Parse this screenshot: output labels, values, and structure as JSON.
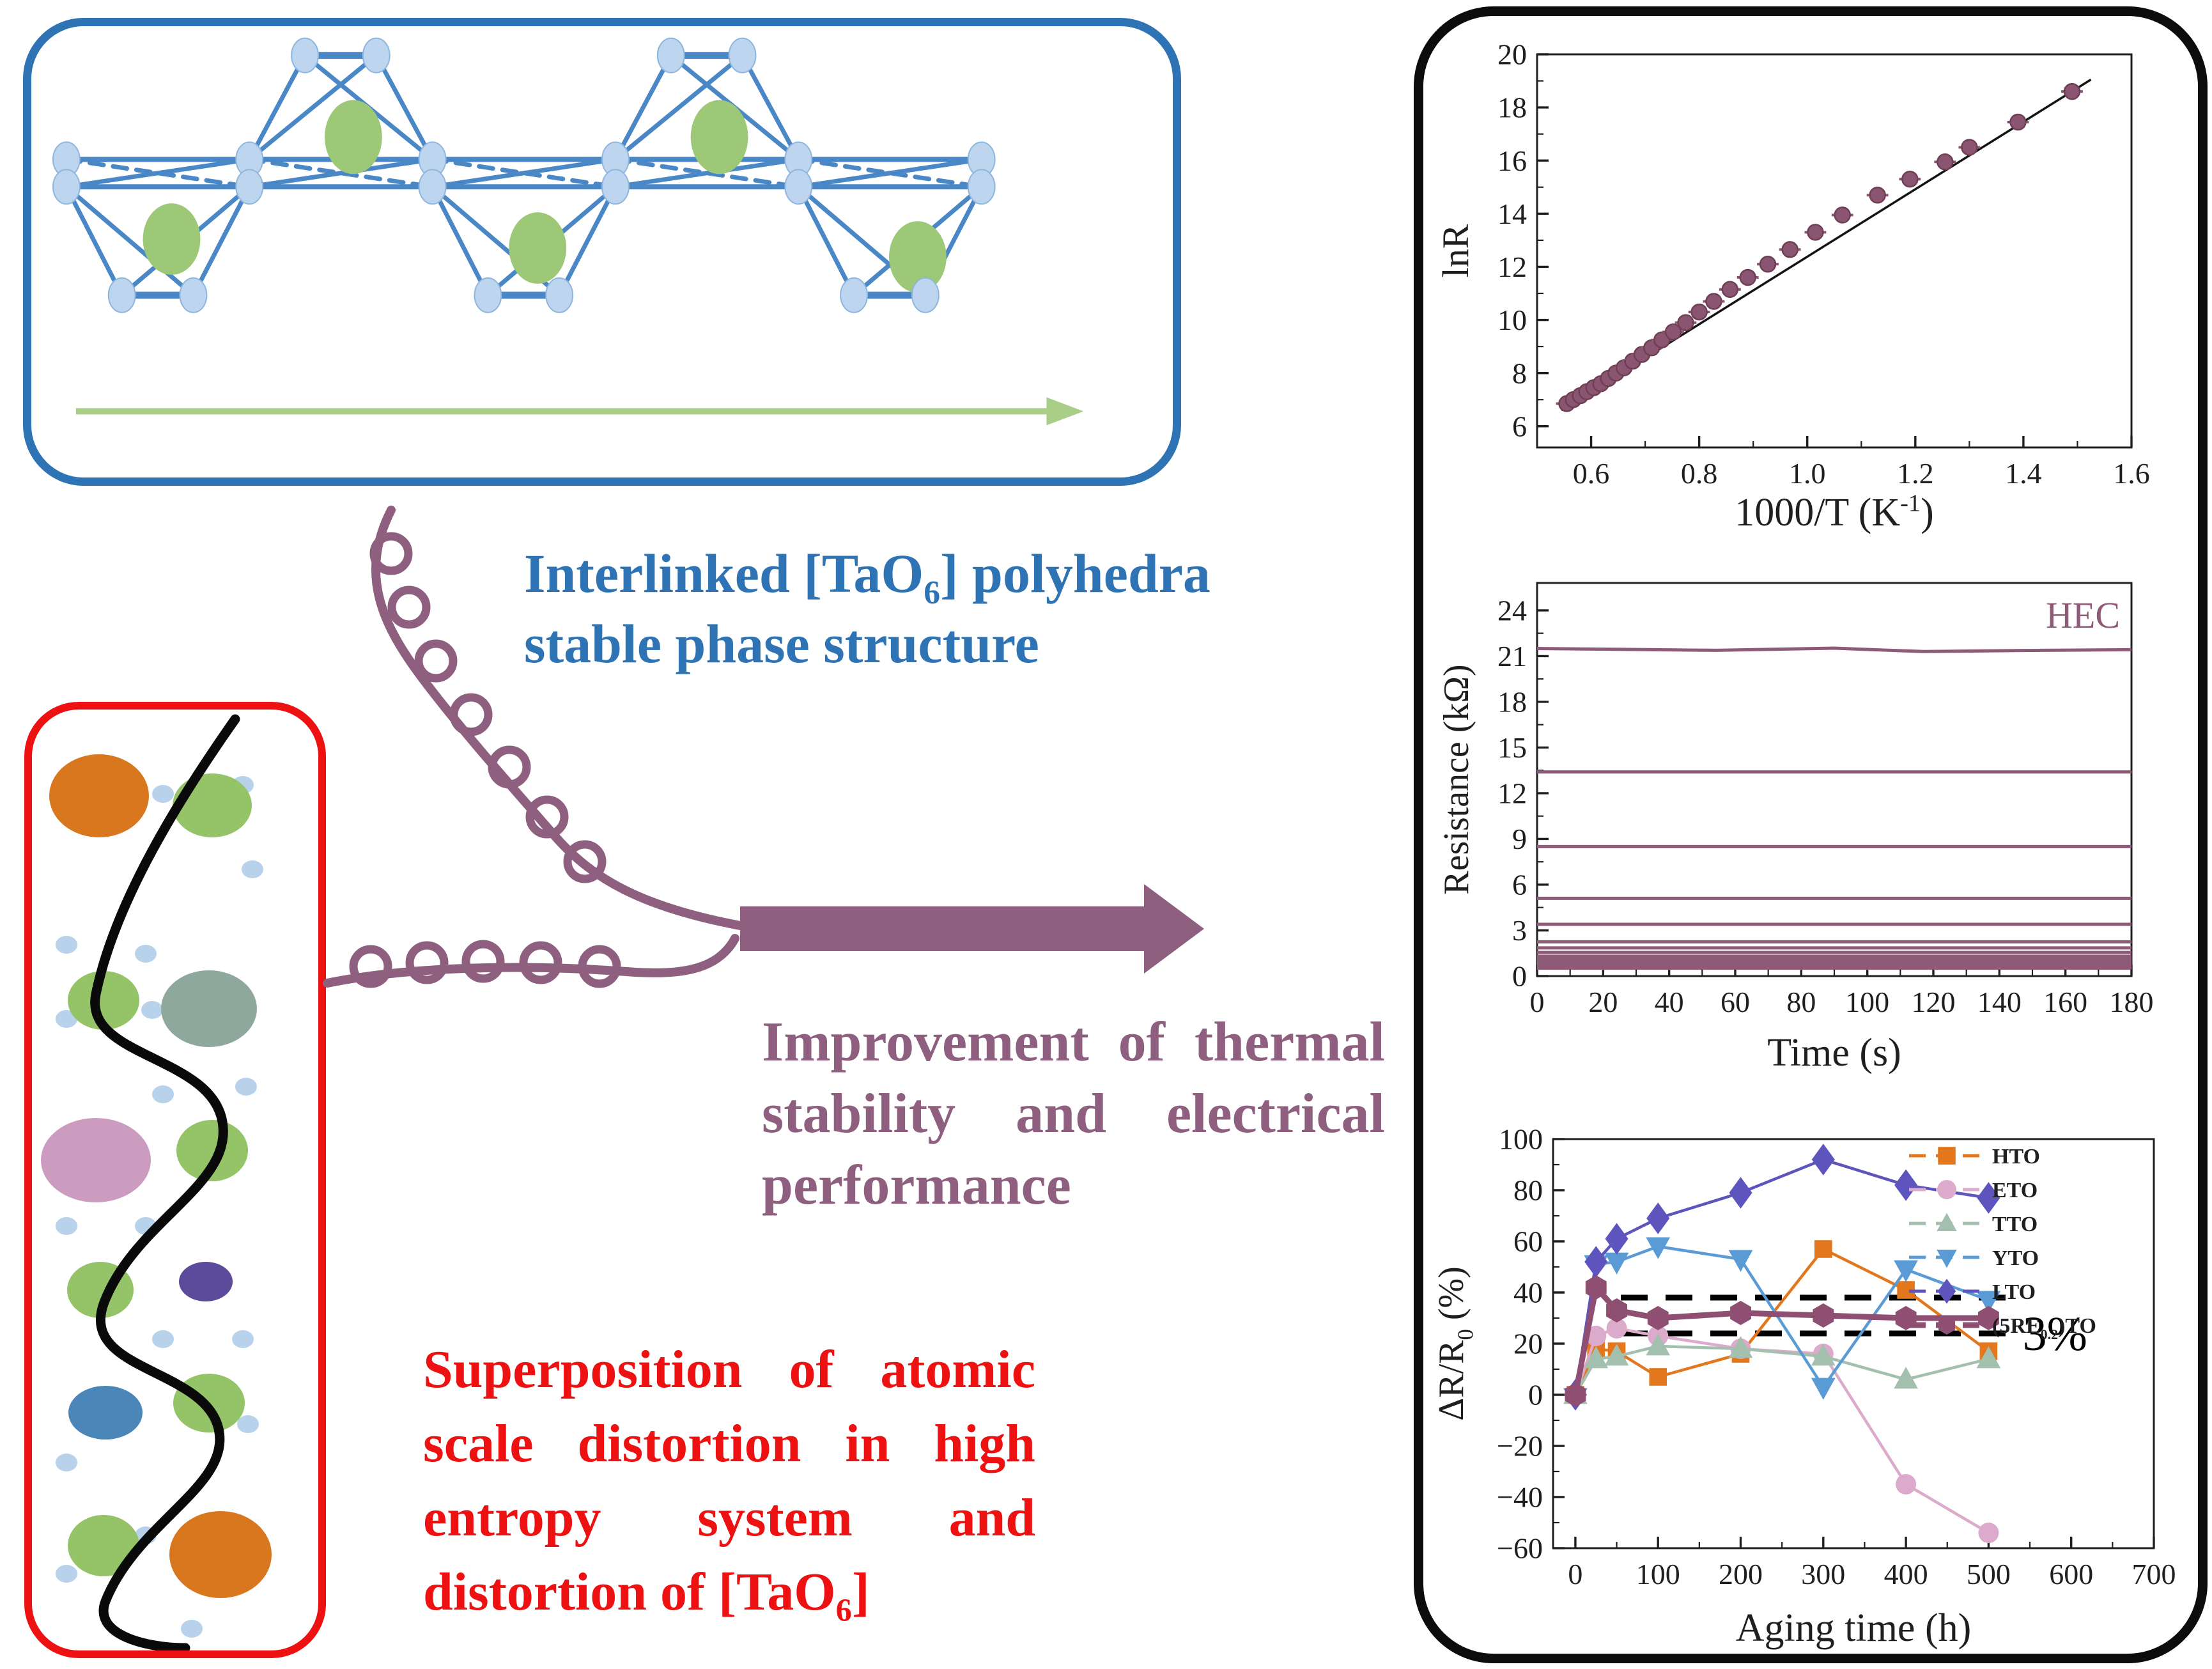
{
  "colors": {
    "blue-accent": "#2e74b5",
    "red-accent": "#ee1111",
    "plum": "#8e5f7e",
    "plum-dark": "#8d5a78",
    "node-blue": "#bdd5ee",
    "node-stroke": "#8fb6de",
    "bond-blue": "#4a87c6",
    "green-ellipse": "#9cc878",
    "green-arrow": "#a9ce87",
    "atom-orange": "#d9771e",
    "atom-green": "#94c368",
    "atom-sage": "#8fa89e",
    "atom-pink": "#cc9bc0",
    "atom-purple": "#5c4b9b",
    "atom-blue": "#4a86b8",
    "atom-dot": "#b7d2ea",
    "wave-black": "#0a0a0a",
    "axis-ink": "#1f1f1f"
  },
  "headings": {
    "blue": {
      "lines": [
        [
          {
            "t": "Interlinked [TaO"
          },
          {
            "t": "6",
            "sub": true
          },
          {
            "t": "] polyhedra"
          }
        ],
        [
          {
            "t": "stable phase structure"
          }
        ]
      ],
      "justify": [
        false,
        false
      ]
    },
    "plum": {
      "lines": [
        [
          {
            "t": "Improvement of thermal"
          }
        ],
        [
          {
            "t": "stability and electrical"
          }
        ],
        [
          {
            "t": "performance"
          }
        ]
      ],
      "justify": [
        true,
        true,
        false
      ]
    },
    "red": {
      "lines": [
        [
          {
            "t": "Superposition of atomic"
          }
        ],
        [
          {
            "t": "scale distortion in high"
          }
        ],
        [
          {
            "t": "entropy system and"
          }
        ],
        [
          {
            "t": "distortion of [TaO"
          },
          {
            "t": "6",
            "sub": true
          },
          {
            "t": "]"
          }
        ]
      ],
      "justify": [
        true,
        true,
        true,
        false
      ]
    }
  },
  "chart_data": [
    {
      "type": "scatter",
      "title": "",
      "ylabel": "lnR",
      "xlabel_segments": [
        {
          "t": "1000/T (K"
        },
        {
          "t": "-1",
          "sup": true
        },
        {
          "t": ")"
        }
      ],
      "xlim": [
        0.5,
        1.6
      ],
      "ylim": [
        5.2,
        20
      ],
      "grid": false,
      "legend_position": "none",
      "xticks": {
        "values": [
          0.6,
          0.8,
          1.0,
          1.2,
          1.4,
          1.6
        ],
        "labels": [
          "0.6",
          "0.8",
          "1.0",
          "1.2",
          "1.4",
          "1.6"
        ],
        "minor": [
          0.7,
          0.9,
          1.1,
          1.3,
          1.5
        ]
      },
      "yticks": {
        "values": [
          6,
          8,
          10,
          12,
          14,
          16,
          18,
          20
        ],
        "labels": [
          "6",
          "8",
          "10",
          "12",
          "14",
          "16",
          "18",
          "20"
        ],
        "minor": [
          7,
          9,
          11,
          13,
          15,
          17,
          19
        ]
      },
      "point_color": "#8a5570",
      "point_edge": "#6e3f55",
      "fit_line": {
        "x": [
          0.545,
          1.525
        ],
        "y": [
          6.6,
          19.05
        ],
        "color": "#141414"
      },
      "xerr": 0.02,
      "points": [
        [
          0.555,
          6.85
        ],
        [
          0.567,
          7.0
        ],
        [
          0.58,
          7.15
        ],
        [
          0.592,
          7.3
        ],
        [
          0.605,
          7.45
        ],
        [
          0.618,
          7.6
        ],
        [
          0.632,
          7.8
        ],
        [
          0.646,
          8.0
        ],
        [
          0.661,
          8.2
        ],
        [
          0.677,
          8.45
        ],
        [
          0.694,
          8.7
        ],
        [
          0.712,
          8.95
        ],
        [
          0.731,
          9.25
        ],
        [
          0.752,
          9.55
        ],
        [
          0.775,
          9.9
        ],
        [
          0.8,
          10.3
        ],
        [
          0.827,
          10.7
        ],
        [
          0.857,
          11.15
        ],
        [
          0.89,
          11.6
        ],
        [
          0.927,
          12.1
        ],
        [
          0.968,
          12.65
        ],
        [
          1.015,
          13.3
        ],
        [
          1.065,
          13.95
        ],
        [
          1.13,
          14.7
        ],
        [
          1.19,
          15.3
        ],
        [
          1.255,
          15.95
        ],
        [
          1.3,
          16.5
        ],
        [
          1.39,
          17.45
        ],
        [
          1.49,
          18.6
        ]
      ]
    },
    {
      "type": "line",
      "title": "",
      "ylabel": "Resistance (kΩ)",
      "xlabel": "Time (s)",
      "annotation": "HEC",
      "xlim": [
        0,
        180
      ],
      "ylim": [
        0,
        25.8
      ],
      "grid": false,
      "legend_position": "none",
      "xticks": {
        "values": [
          0,
          20,
          40,
          60,
          80,
          100,
          120,
          140,
          160,
          180
        ],
        "labels": [
          "0",
          "20",
          "40",
          "60",
          "80",
          "100",
          "120",
          "140",
          "160",
          "180"
        ],
        "minor": [
          10,
          30,
          50,
          70,
          90,
          110,
          130,
          150,
          170
        ]
      },
      "yticks": {
        "values": [
          0,
          3,
          6,
          9,
          12,
          15,
          18,
          21,
          24
        ],
        "labels": [
          "0",
          "3",
          "6",
          "9",
          "12",
          "15",
          "18",
          "21",
          "24"
        ],
        "minor": [
          1.5,
          4.5,
          7.5,
          10.5,
          13.5,
          16.5,
          19.5,
          22.5
        ]
      },
      "line_color": "#8d5a78",
      "lines": [
        21.5,
        13.4,
        8.5,
        5.1,
        3.4,
        2.25,
        1.85,
        1.55,
        1.3,
        1.12,
        0.95,
        0.8,
        0.65,
        0.52
      ]
    },
    {
      "type": "line",
      "title": "",
      "ylabel_segments": [
        {
          "t": "ΔR/R"
        },
        {
          "t": "0",
          "sub": true
        },
        {
          "t": " (%)"
        }
      ],
      "xlabel": "Aging time (h)",
      "annotation": "3%",
      "xlim": [
        -27,
        700
      ],
      "ylim": [
        -60,
        100
      ],
      "grid": false,
      "legend_position": "top-right",
      "xticks": {
        "values": [
          0,
          100,
          200,
          300,
          400,
          500,
          600,
          700
        ],
        "labels": [
          "0",
          "100",
          "200",
          "300",
          "400",
          "500",
          "600",
          "700"
        ],
        "minor": [
          50,
          150,
          250,
          350,
          450,
          550,
          650
        ]
      },
      "yticks": {
        "values": [
          -60,
          -40,
          -20,
          0,
          20,
          40,
          60,
          80,
          100
        ],
        "labels": [
          "−60",
          "−40",
          "−20",
          "0",
          "20",
          "40",
          "60",
          "80",
          "100"
        ],
        "minor": [
          -50,
          -30,
          -10,
          10,
          30,
          50,
          70,
          90
        ]
      },
      "x": [
        0,
        25,
        50,
        100,
        200,
        300,
        400,
        500
      ],
      "series": [
        {
          "name_segments": [
            {
              "t": "HTO"
            }
          ],
          "marker": "square",
          "color": "#e2771e",
          "values": [
            0,
            18,
            17,
            7,
            16,
            57,
            41,
            17
          ]
        },
        {
          "name_segments": [
            {
              "t": "ETO"
            }
          ],
          "marker": "circle",
          "color": "#dcaacb",
          "values": [
            0,
            23,
            26,
            23,
            18,
            16,
            -35,
            -54
          ]
        },
        {
          "name_segments": [
            {
              "t": "TTO"
            }
          ],
          "marker": "triangle-up",
          "color": "#a3c0ae",
          "values": [
            0,
            14,
            15,
            19,
            18,
            15,
            6,
            14
          ]
        },
        {
          "name_segments": [
            {
              "t": "YTO"
            }
          ],
          "marker": "triangle-down",
          "color": "#5b9bd5",
          "values": [
            -1,
            51,
            52,
            58,
            53,
            3,
            49,
            37
          ]
        },
        {
          "name_segments": [
            {
              "t": "LTO"
            }
          ],
          "marker": "diamond",
          "color": "#5e54bd",
          "values": [
            0,
            52,
            61,
            69,
            79,
            92,
            82,
            77
          ]
        },
        {
          "name_segments": [
            {
              "t": "(5RE"
            },
            {
              "t": "0.2",
              "sub": true
            },
            {
              "t": ")TO"
            }
          ],
          "marker": "hexagon",
          "color": "#8e4f72",
          "values": [
            0,
            42,
            33,
            30,
            32,
            31,
            30,
            30
          ],
          "thick": true
        }
      ],
      "dashed_lines": {
        "y": [
          38,
          24
        ],
        "x1": 55,
        "x2": 535,
        "color": "#000000"
      }
    }
  ]
}
